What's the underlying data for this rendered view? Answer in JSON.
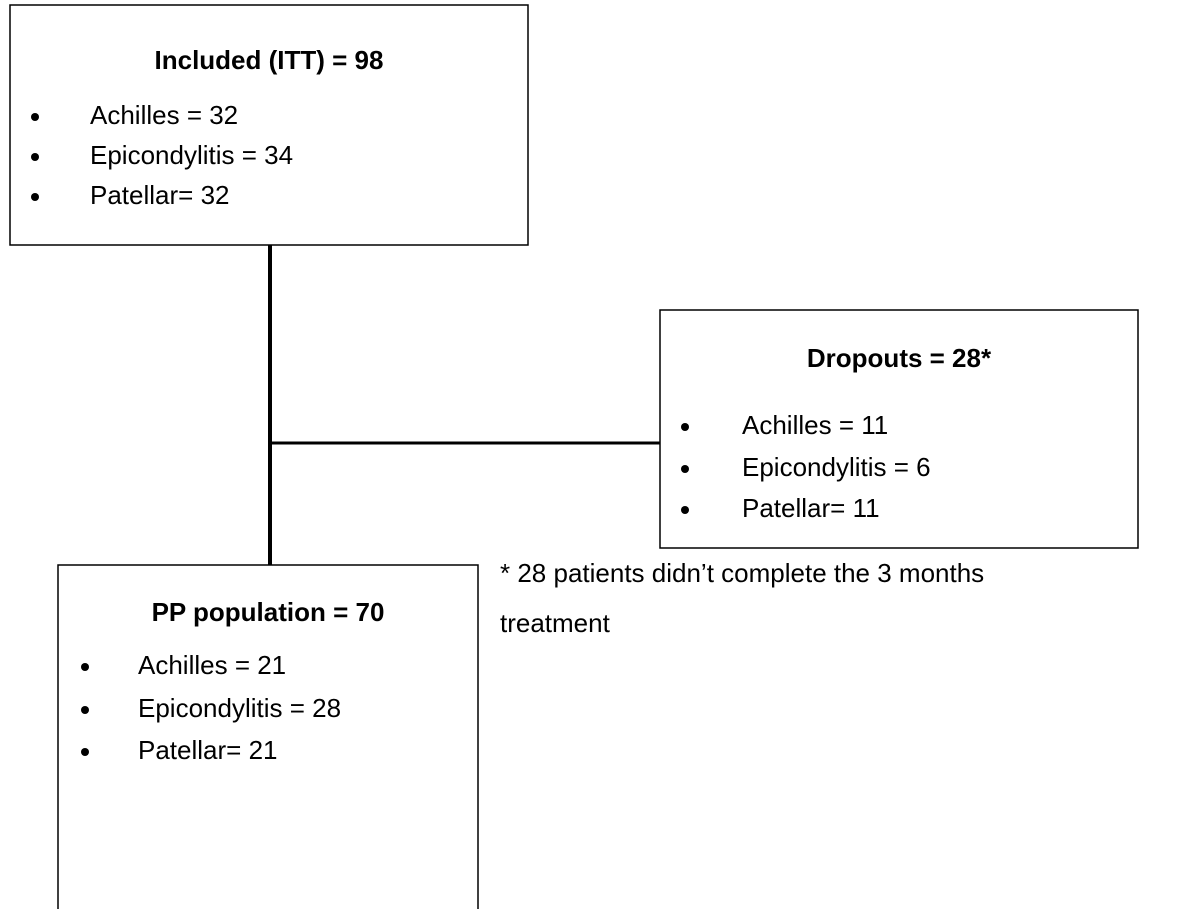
{
  "nodes": [
    {
      "title": "Included (ITT) = 98",
      "items": [
        "Achilles = 32",
        "Epicondylitis = 34",
        "Patellar= 32"
      ]
    },
    {
      "title": "Dropouts = 28*",
      "items": [
        "Achilles = 11",
        "Epicondylitis = 6",
        "Patellar= 11"
      ]
    },
    {
      "title": "PP population = 70",
      "items": [
        "Achilles = 21",
        "Epicondylitis = 28",
        "Patellar= 21"
      ]
    }
  ],
  "note": "* 28 patients didn’t complete the 3 months treatment"
}
